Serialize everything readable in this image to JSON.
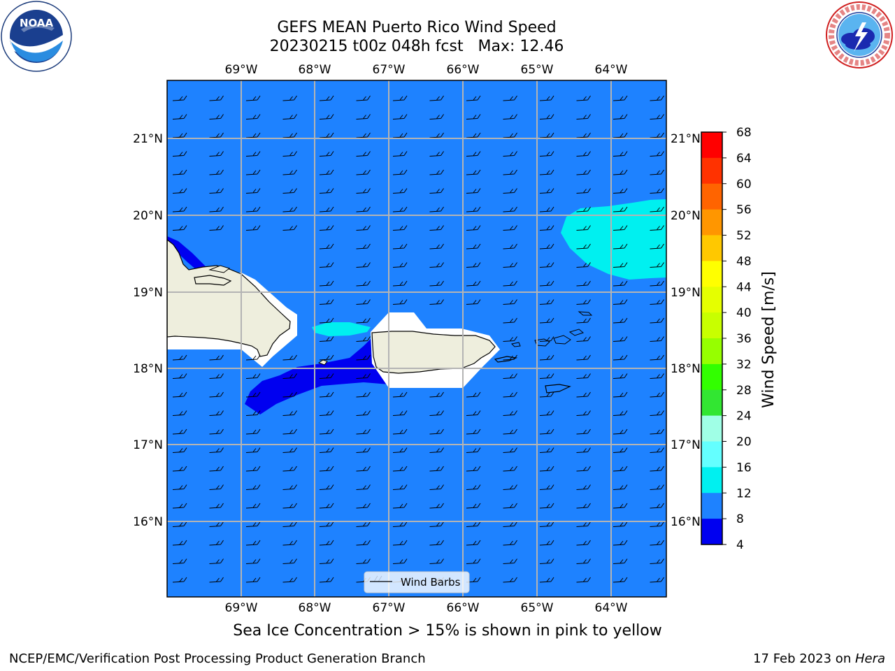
{
  "header": {
    "title_line1": "GEFS MEAN Puerto Rico Wind Speed",
    "title_line2": "20230215 t00z 048h fcst   Max: 12.46"
  },
  "logos": {
    "left": {
      "icon": "noaa-logo",
      "text": "NOAA",
      "ring_text": "NATIONAL OCEANIC AND ATMOSPHERIC ADMINISTRATION · U.S. DEPARTMENT OF COMMERCE"
    },
    "right": {
      "icon": "nws-logo",
      "ring_text": "NATIONAL WEATHER SERVICE"
    }
  },
  "map": {
    "lon_labels": [
      "69°W",
      "68°W",
      "67°W",
      "66°W",
      "65°W",
      "64°W"
    ],
    "lat_labels": [
      "21°N",
      "20°N",
      "19°N",
      "18°N",
      "17°N",
      "16°N"
    ],
    "legend_label": "Wind Barbs",
    "colors": {
      "ocean_8_12": "#1e82ff",
      "band_4_8": "#0000f0",
      "band_12_16": "#00f0f0",
      "land": "#eeeedd",
      "gridline": "#b4b4b4"
    }
  },
  "colorbar": {
    "label": "Wind Speed [m/s]",
    "ticks": [
      "68",
      "64",
      "60",
      "56",
      "52",
      "48",
      "44",
      "40",
      "36",
      "32",
      "28",
      "24",
      "20",
      "16",
      "12",
      "8",
      "4"
    ],
    "colors_top_to_bottom": [
      "#ff0000",
      "#ff3200",
      "#ff6400",
      "#ff9600",
      "#ffc800",
      "#ffff00",
      "#e5ff00",
      "#c8ff00",
      "#96ff00",
      "#32ff00",
      "#32e632",
      "#a0ffe6",
      "#64ffff",
      "#00f0f0",
      "#1e82ff",
      "#0000f0"
    ]
  },
  "notes": {
    "ice": "Sea Ice Concentration > 15% is shown in pink to yellow"
  },
  "footer": {
    "left": "NCEP/EMC/Verification Post Processing Product Generation Branch",
    "right_prefix": "17 Feb 2023 on ",
    "right_host": "Hera"
  }
}
